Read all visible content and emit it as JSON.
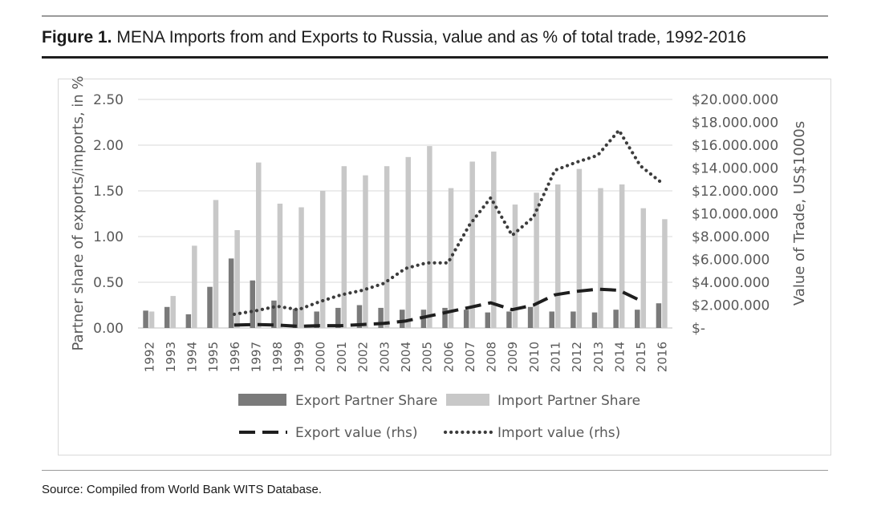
{
  "figure": {
    "label": "Figure 1.",
    "title": "MENA Imports from and Exports to Russia, value and as % of total trade, 1992-2016"
  },
  "source": "Source: Compiled from World Bank WITS Database.",
  "colors": {
    "export_bar": "#7a7a7a",
    "import_bar": "#c8c8c8",
    "export_line": "#1e1e1e",
    "import_line": "#3c3c3c",
    "axis_text": "#595959",
    "gridline": "#d9d9d9"
  },
  "chart_data": {
    "type": "bar",
    "x": [
      "1992",
      "1993",
      "1994",
      "1995",
      "1996",
      "1997",
      "1998",
      "1999",
      "2000",
      "2001",
      "2002",
      "2003",
      "2004",
      "2005",
      "2006",
      "2007",
      "2008",
      "2009",
      "2010",
      "2011",
      "2012",
      "2013",
      "2014",
      "2015",
      "2016"
    ],
    "y_left": {
      "label": "Partner share of exports/imports, in %",
      "range": [
        0,
        2.5
      ],
      "ticks": [
        "0.00",
        "0.50",
        "1.00",
        "1.50",
        "2.00",
        "2.50"
      ]
    },
    "y_right": {
      "label": "Value of Trade, US$1000s",
      "range": [
        0,
        20000000
      ],
      "ticks": [
        "$-",
        "$2.000.000",
        "$4.000.000",
        "$6.000.000",
        "$8.000.000",
        "$10.000.000",
        "$12.000.000",
        "$14.000.000",
        "$16.000.000",
        "$18.000.000",
        "$20.000.000"
      ]
    },
    "gridlines": true,
    "legend_position": "bottom",
    "series": [
      {
        "name": "Export Partner Share",
        "kind": "bar",
        "axis": "left",
        "values": [
          0.19,
          0.23,
          0.15,
          0.45,
          0.76,
          0.52,
          0.3,
          0.21,
          0.18,
          0.22,
          0.25,
          0.22,
          0.2,
          0.2,
          0.22,
          0.2,
          0.17,
          0.18,
          0.23,
          0.18,
          0.18,
          0.17,
          0.2,
          0.2,
          0.27
        ]
      },
      {
        "name": "Import Partner Share",
        "kind": "bar",
        "axis": "left",
        "values": [
          0.18,
          0.35,
          0.9,
          1.4,
          1.07,
          1.81,
          1.36,
          1.32,
          1.5,
          1.77,
          1.67,
          1.77,
          1.87,
          1.99,
          1.53,
          1.82,
          1.93,
          1.35,
          1.48,
          1.57,
          1.74,
          1.53,
          1.57,
          1.31,
          1.19
        ]
      },
      {
        "name": "Export value (rhs)",
        "kind": "line",
        "style": "dashed",
        "axis": "right",
        "values": [
          null,
          null,
          null,
          null,
          250000,
          300000,
          250000,
          150000,
          200000,
          200000,
          300000,
          400000,
          600000,
          1000000,
          1400000,
          1800000,
          2200000,
          1600000,
          2000000,
          2900000,
          3200000,
          3400000,
          3300000,
          2400000,
          null
        ]
      },
      {
        "name": "Import value (rhs)",
        "kind": "line",
        "style": "dotted",
        "axis": "right",
        "values": [
          null,
          null,
          null,
          null,
          1200000,
          1500000,
          1900000,
          1600000,
          2300000,
          2900000,
          3300000,
          3900000,
          5200000,
          5700000,
          5700000,
          9000000,
          11400000,
          8100000,
          9700000,
          13800000,
          14500000,
          15100000,
          17300000,
          14200000,
          12700000
        ]
      }
    ]
  }
}
